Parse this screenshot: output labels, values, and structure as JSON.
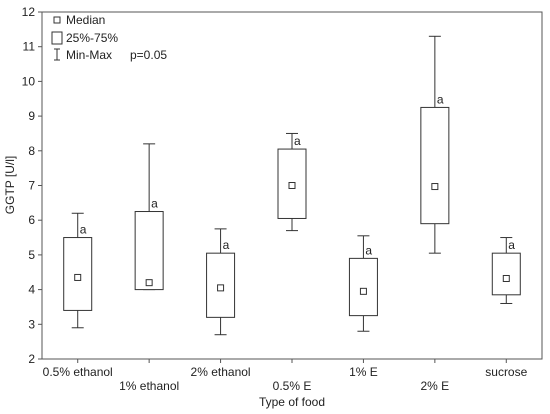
{
  "chart_data": {
    "type": "boxplot",
    "xlabel": "Type of food",
    "ylabel": "GGTP [U/l]",
    "ylim": [
      2,
      12
    ],
    "yticks": [
      2,
      3,
      4,
      5,
      6,
      7,
      8,
      9,
      10,
      11,
      12
    ],
    "grid": false,
    "legend_position": "top-left",
    "legend": {
      "median": "Median",
      "box": "25%-75%",
      "whisker": "Min-Max"
    },
    "annotation": "p=0.05",
    "categories": [
      "0.5% ethanol",
      "1% ethanol",
      "2% ethanol",
      "0.5% E",
      "1% E",
      "2% E",
      "sucrose"
    ],
    "boxes": [
      {
        "min": 2.9,
        "q1": 3.4,
        "median": 4.35,
        "q3": 5.5,
        "max": 6.2,
        "label": "a"
      },
      {
        "min": 4.0,
        "q1": 4.0,
        "median": 4.2,
        "q3": 6.25,
        "max": 8.2,
        "label": "a"
      },
      {
        "min": 2.7,
        "q1": 3.2,
        "median": 4.05,
        "q3": 5.05,
        "max": 5.75,
        "label": "a"
      },
      {
        "min": 5.7,
        "q1": 6.05,
        "median": 7.0,
        "q3": 8.05,
        "max": 8.5,
        "label": "a"
      },
      {
        "min": 2.8,
        "q1": 3.25,
        "median": 3.95,
        "q3": 4.9,
        "max": 5.55,
        "label": "a"
      },
      {
        "min": 5.05,
        "q1": 5.9,
        "median": 6.97,
        "q3": 9.25,
        "max": 11.3,
        "label": "a"
      },
      {
        "min": 3.6,
        "q1": 3.85,
        "median": 4.32,
        "q3": 5.05,
        "max": 5.5,
        "label": "a"
      }
    ],
    "colors": {
      "line": "#333333",
      "frame": "#555555",
      "background": "#ffffff"
    }
  }
}
